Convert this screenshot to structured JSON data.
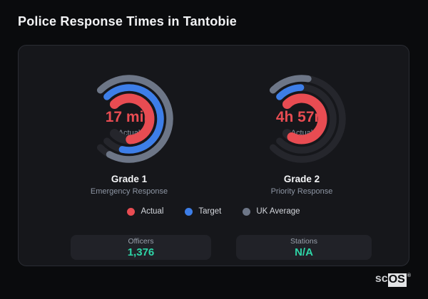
{
  "page": {
    "title": "Police Response Times in Tantobie"
  },
  "chart_data": [
    {
      "type": "radial-gauge",
      "title": "Grade 1",
      "subtitle": "Emergency Response",
      "center_value": "17 min",
      "center_label": "Actual",
      "axis_start_deg": 135,
      "axis_sweep_deg": 270,
      "series": [
        {
          "name": "Actual",
          "color": "#e84c52",
          "fill_pct": 82
        },
        {
          "name": "Target",
          "color": "#3d7ee8",
          "fill_pct": 88
        },
        {
          "name": "UK Average",
          "color": "#6d7687",
          "fill_pct": 94
        }
      ]
    },
    {
      "type": "radial-gauge",
      "title": "Grade 2",
      "subtitle": "Priority Response",
      "center_value": "4h 57m",
      "center_label": "Actual",
      "axis_start_deg": 135,
      "axis_sweep_deg": 270,
      "series": [
        {
          "name": "Actual",
          "color": "#e84c52",
          "fill_pct": 94
        },
        {
          "name": "Target",
          "color": "#3d7ee8",
          "fill_pct": 16
        },
        {
          "name": "UK Average",
          "color": "#6d7687",
          "fill_pct": 20
        }
      ]
    }
  ],
  "legend": {
    "items": [
      {
        "label": "Actual",
        "color": "#e84c52"
      },
      {
        "label": "Target",
        "color": "#3d7ee8"
      },
      {
        "label": "UK Average",
        "color": "#6d7687"
      }
    ]
  },
  "stats": [
    {
      "label": "Officers",
      "value": "1,376"
    },
    {
      "label": "Stations",
      "value": "N/A"
    }
  ],
  "branding": {
    "prefix": "sc",
    "suffix": "OS",
    "registered": "®"
  },
  "colors": {
    "page_bg": "#0a0b0d",
    "card_bg": "#16171b",
    "card_border": "#2a2c33",
    "track": "#25262c",
    "value_text": "#e84c52",
    "stat_value": "#2ed5a7",
    "accent_red": "#e84c52",
    "accent_blue": "#3d7ee8",
    "accent_gray": "#6d7687"
  }
}
